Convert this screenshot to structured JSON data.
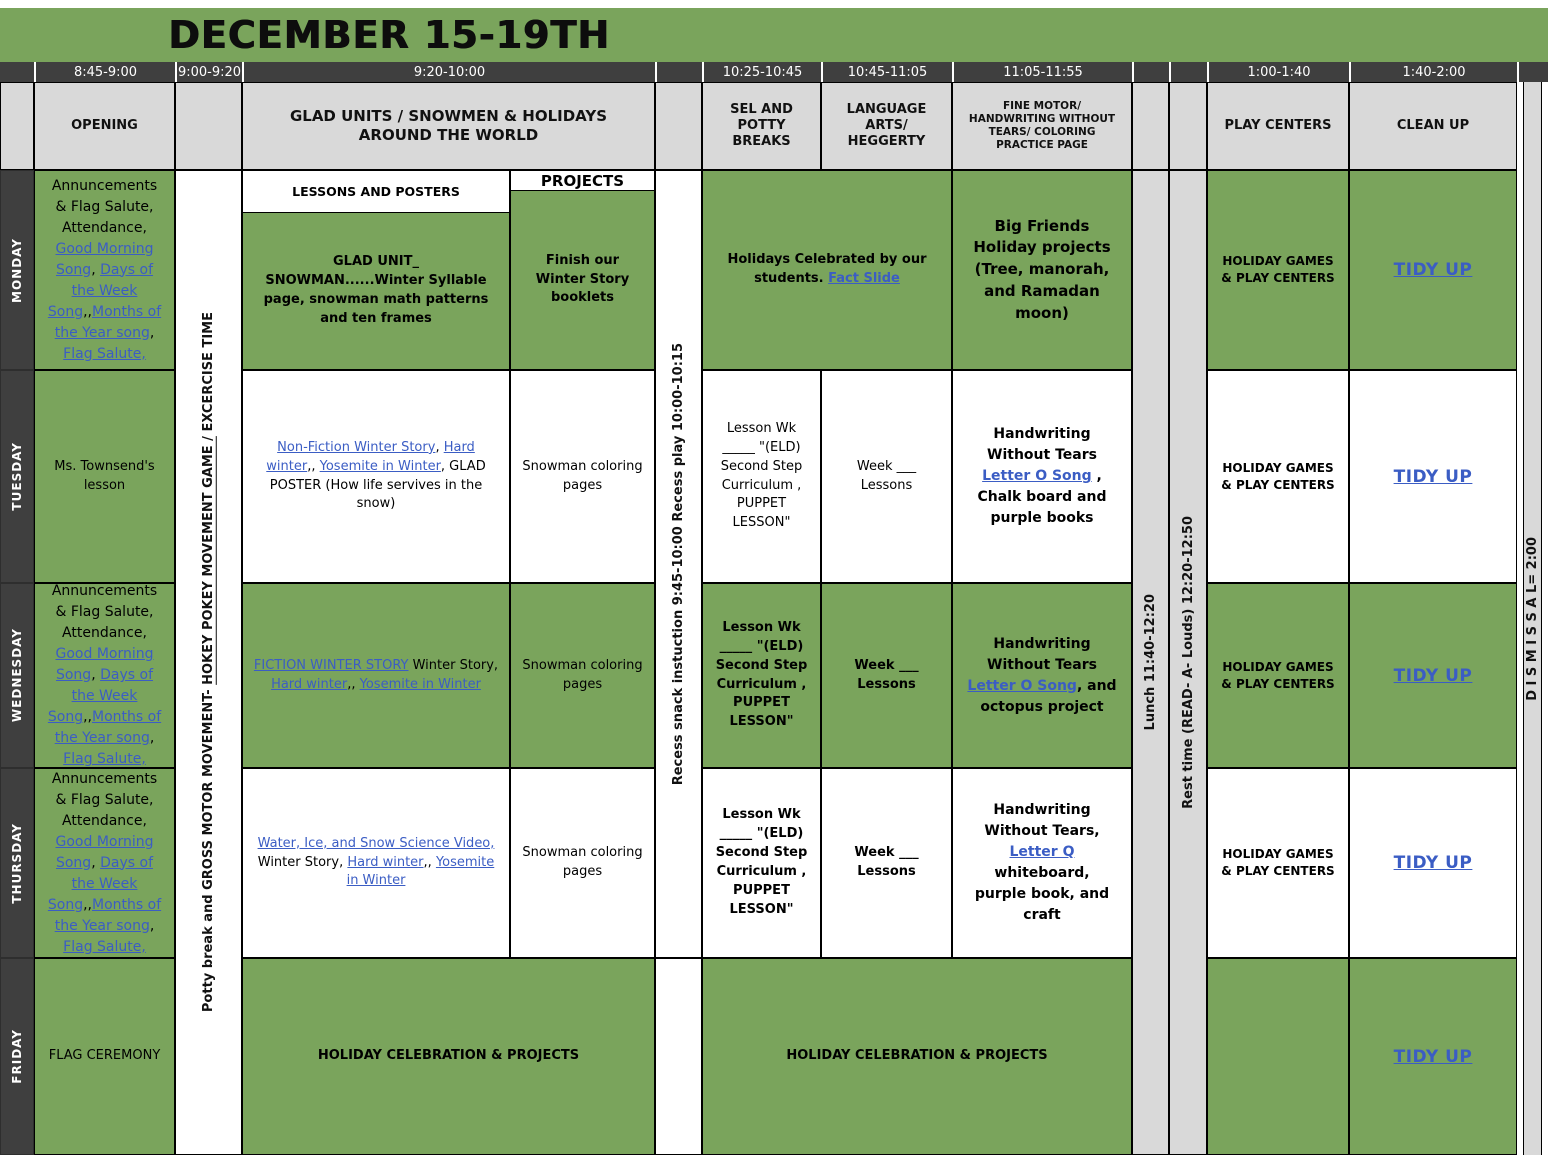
{
  "title": "DECEMBER 15-19TH",
  "colors": {
    "green": "#7aa45c",
    "header_gray": "#d9d9d9",
    "band_dark": "#3f3f3f",
    "link_blue": "#3b5dc4"
  },
  "times": {
    "opening": "8:45-9:00",
    "potty": "9:00-9:20",
    "glad": "9:20-10:00",
    "sel": "10:25-10:45",
    "language": "10:45-11:05",
    "fine_motor": "11:05-11:55",
    "play": "1:00-1:40",
    "clean": "1:40-2:00"
  },
  "headers": {
    "opening": "OPENING",
    "glad": "GLAD UNITS / SNOWMEN & HOLIDAYS AROUND THE WORLD",
    "sel": "SEL AND POTTY BREAKS",
    "language": "LANGUAGE ARTS/ HEGGERTY",
    "fine_motor": "FINE MOTOR/ HANDWRITING WITHOUT TEARS/ COLORING PRACTICE PAGE",
    "play": "PLAY CENTERS",
    "clean": "CLEAN UP"
  },
  "days": {
    "monday": "MONDAY",
    "tuesday": "TUESDAY",
    "wednesday": "WEDNESDAY",
    "thursday": "THURSDAY",
    "friday": "FRIDAY"
  },
  "sub_headers": {
    "lessons": "LESSONS AND POSTERS",
    "projects": "PROJECTS"
  },
  "vertical": {
    "potty_pre": "Potty break and GROSS MOTOR MOVEMENT-  ",
    "potty_link": "HOKEY POKEY MOVEMENT GAME /",
    "potty_post": " EXCERCISE TIME",
    "recess": "Recess snack instuction 9:45-10:00 Recess play 10:00-10:15",
    "lunch": "Lunch 11:40-12:20",
    "rest": "Rest time (READ- A- Louds) 12:20-12:50",
    "dismissal": "D I S M I S S A L= 2:00"
  },
  "announcements": {
    "intro": "Annuncements  & Flag Salute, Attendance, ",
    "link_morning": "Good Morning Song",
    "sep1": ", ",
    "link_days": "Days of the Week Song",
    "sep2": ",,",
    "link_months": "Months of the Year song",
    "sep3": ", ",
    "link_flag": "Flag Salute,"
  },
  "shared": {
    "sel_lesson": "Lesson Wk _____ \"(ELD) Second Step Curriculum , PUPPET LESSON\"",
    "week_lessons": "Week ___ Lessons",
    "snowman_coloring": "Snowman coloring pages",
    "holiday_games": "HOLIDAY GAMES & PLAY CENTERS",
    "tidy_up": "TIDY UP",
    "holiday_celebration": "HOLIDAY CELEBRATION & PROJECTS"
  },
  "monday": {
    "lessons": "GLAD UNIT_ SNOWMAN......Winter Syllable page, snowman math patterns and ten frames",
    "projects": "Finish our Winter Story booklets",
    "holidays_pre": "Holidays Celebrated by our students.  ",
    "holidays_link": "Fact Slide",
    "fine_motor": "Big Friends Holiday projects (Tree, manorah, and Ramadan moon)"
  },
  "tuesday": {
    "opening": "Ms. Townsend's lesson",
    "lessons_link1": "Non-Fiction Winter Story",
    "lessons_sep1": ", ",
    "lessons_link2": "Hard winter",
    "lessons_sep2": ",, ",
    "lessons_link3": "Yosemite in Winter",
    "lessons_tail": ", GLAD POSTER (How life servives in the snow)",
    "fm_pre": "Handwriting Without Tears ",
    "fm_link": "Letter O Song",
    "fm_post": " , Chalk board and purple books"
  },
  "wednesday": {
    "lessons_link1": "FICTION WINTER STORY",
    "lessons_sep1": " Winter Story, ",
    "lessons_link2": "Hard winter",
    "lessons_sep2": ",, ",
    "lessons_link3": "Yosemite in Winter",
    "fm_pre": "Handwriting Without Tears ",
    "fm_link": "Letter O Song",
    "fm_post": ", and octopus project"
  },
  "thursday": {
    "lessons_link1": "Water, Ice, and Snow Science Video,",
    "lessons_sep1": "   Winter Story, ",
    "lessons_link2": "Hard winter",
    "lessons_sep2": ",, ",
    "lessons_link3": "Yosemite in Winter",
    "fm_pre": "Handwriting Without Tears, ",
    "fm_link": "Letter Q",
    "fm_post": " whiteboard, purple book, and craft"
  },
  "friday": {
    "opening": "FLAG CEREMONY"
  }
}
